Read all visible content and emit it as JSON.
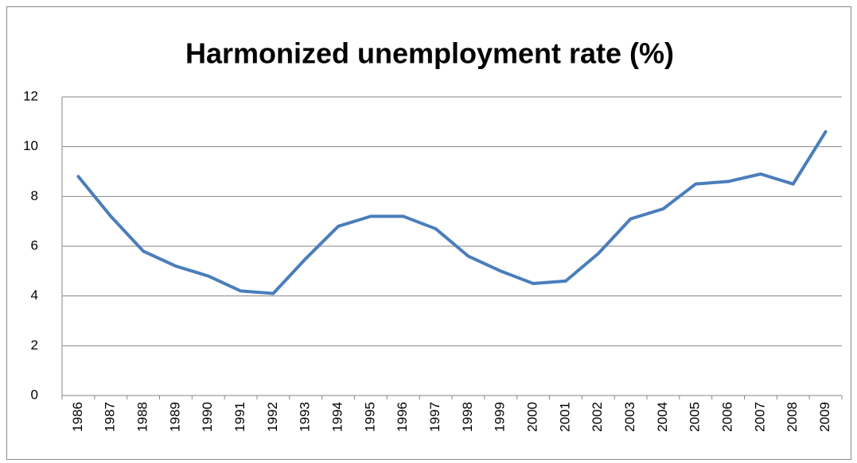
{
  "chart_data": {
    "type": "line",
    "title": "Harmonized unemployment rate (%)",
    "categories": [
      "1986",
      "1987",
      "1988",
      "1989",
      "1990",
      "1991",
      "1992",
      "1993",
      "1994",
      "1995",
      "1996",
      "1997",
      "1998",
      "1999",
      "2000",
      "2001",
      "2002",
      "2003",
      "2004",
      "2005",
      "2006",
      "2007",
      "2008",
      "2009"
    ],
    "series": [
      {
        "name": "Harmonized unemployment rate (%)",
        "color": "#4a7ebb",
        "values": [
          8.8,
          7.2,
          5.8,
          5.2,
          4.8,
          4.2,
          4.1,
          5.5,
          6.8,
          7.2,
          7.2,
          6.7,
          5.6,
          5.0,
          4.5,
          4.6,
          5.7,
          7.1,
          7.5,
          8.5,
          8.6,
          8.9,
          8.5,
          10.6
        ]
      }
    ],
    "ylim": [
      0,
      12
    ],
    "yticks": [
      0,
      2,
      4,
      6,
      8,
      10,
      12
    ],
    "grid": true
  }
}
